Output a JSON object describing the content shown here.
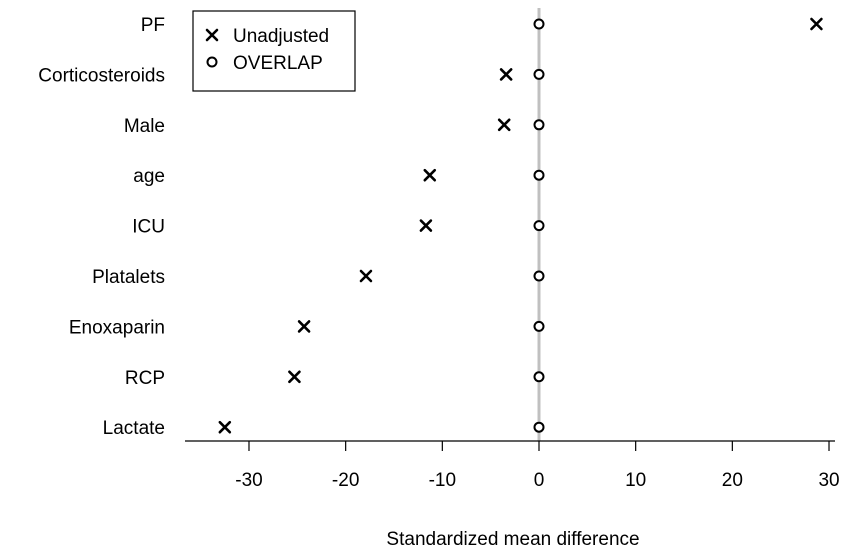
{
  "chart_data": {
    "type": "scatter",
    "title": "",
    "xlabel": "Standardized mean difference",
    "ylabel": "",
    "xlim": [
      -35,
      30
    ],
    "x_ticks": [
      -30,
      -20,
      -10,
      0,
      10,
      20,
      30
    ],
    "x_tick_labels": [
      "-30",
      "-20",
      "-10",
      "0",
      "10",
      "20",
      "30"
    ],
    "reference_line": 0,
    "reference_line_color": "#c0c0c0",
    "categories": [
      "PF",
      "Corticosteroids",
      "Male",
      "age",
      "ICU",
      "Platalets",
      "Enoxaparin",
      "RCP",
      "Lactate"
    ],
    "series": [
      {
        "name": "Unadjusted",
        "marker": "cross",
        "values": [
          28.7,
          -3.4,
          -3.6,
          -11.3,
          -11.7,
          -17.9,
          -24.3,
          -25.3,
          -32.5
        ]
      },
      {
        "name": "OVERLAP",
        "marker": "circle",
        "values": [
          0,
          0,
          0,
          0,
          0,
          0,
          0,
          0,
          0
        ]
      }
    ],
    "legend": {
      "placement": "top-left",
      "entries": [
        {
          "label": "Unadjusted",
          "marker": "cross"
        },
        {
          "label": "OVERLAP",
          "marker": "circle"
        }
      ]
    },
    "grid": false
  }
}
